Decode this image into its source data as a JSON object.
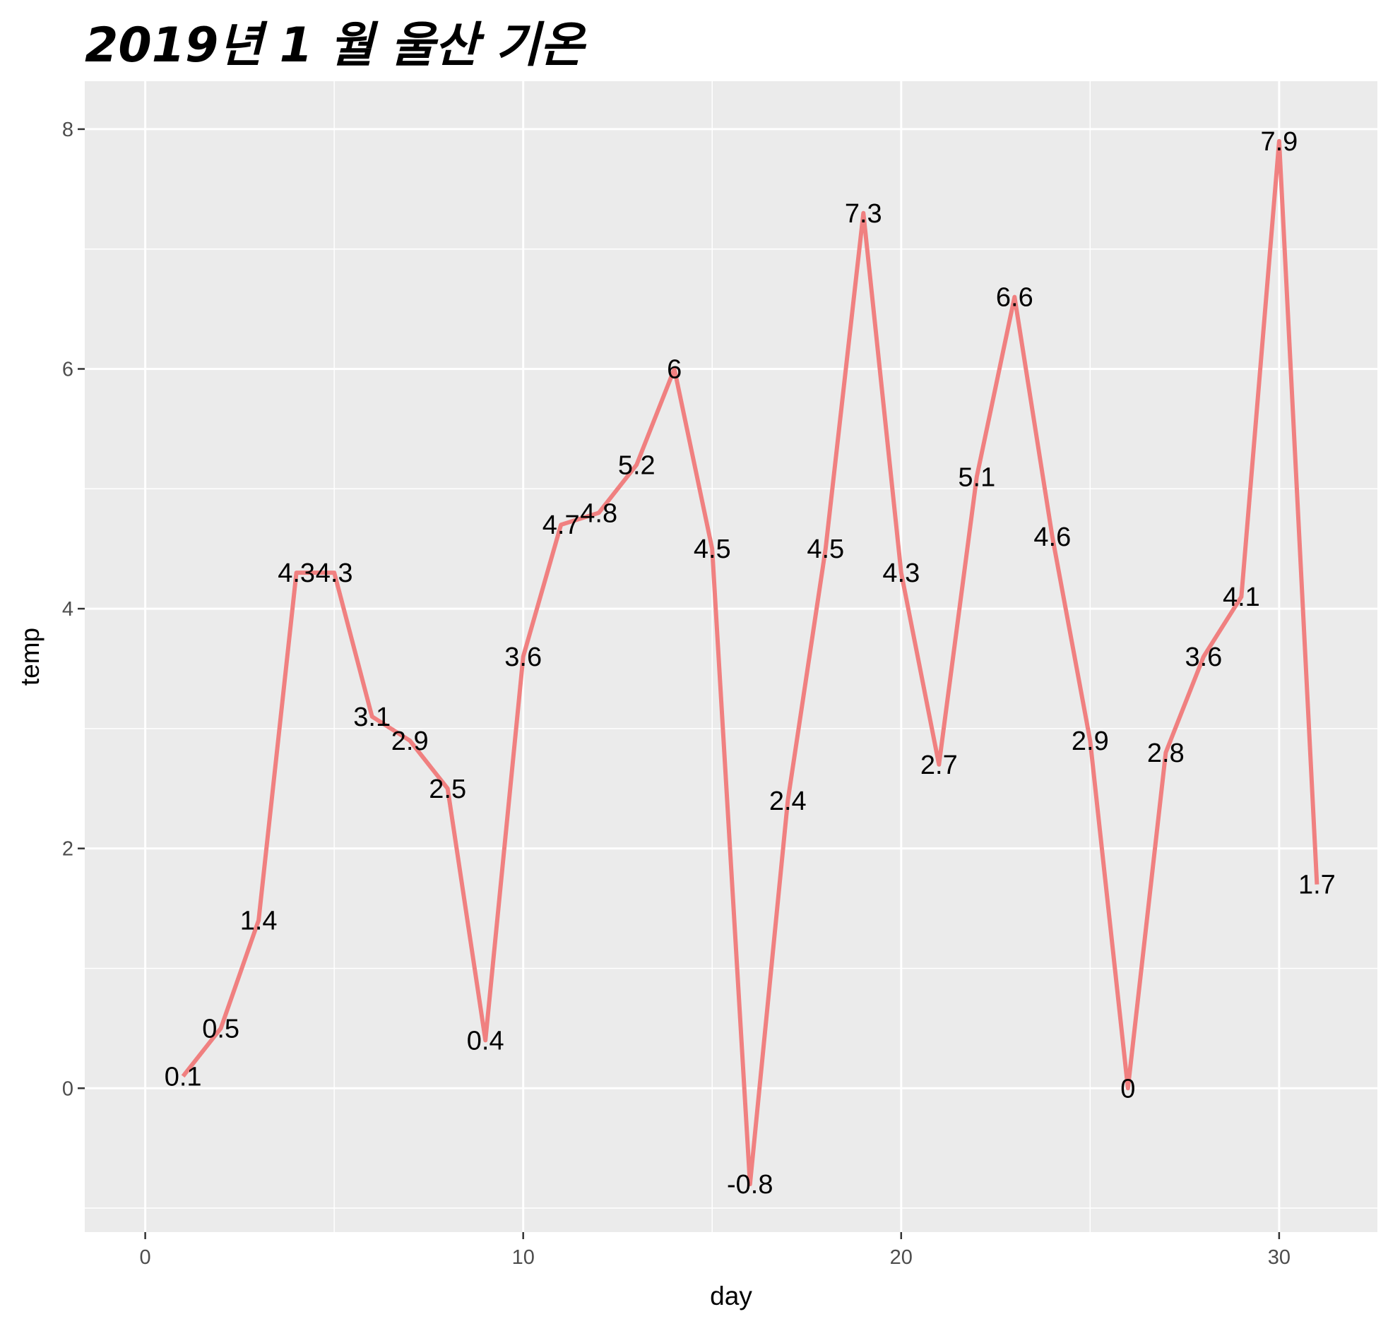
{
  "chart_data": {
    "type": "line",
    "title": "2019년 1 월 울산 기온",
    "xlabel": "day",
    "ylabel": "temp",
    "xlim": [
      -1.6,
      32.6
    ],
    "ylim": [
      -1.2,
      8.4
    ],
    "x_ticks": [
      0,
      10,
      20,
      30
    ],
    "y_ticks": [
      0,
      2,
      4,
      6,
      8
    ],
    "grid": true,
    "legend": "none",
    "line_color": "#F08080",
    "panel_background": "#EBEBEB",
    "grid_color": "#FFFFFF",
    "x": [
      1,
      2,
      3,
      4,
      5,
      6,
      7,
      8,
      9,
      10,
      11,
      12,
      13,
      14,
      15,
      16,
      17,
      18,
      19,
      20,
      21,
      22,
      23,
      24,
      25,
      26,
      27,
      28,
      29,
      30,
      31
    ],
    "values": [
      0.1,
      0.5,
      1.4,
      4.3,
      4.3,
      3.1,
      2.9,
      2.5,
      0.4,
      3.6,
      4.7,
      4.8,
      5.2,
      6,
      4.5,
      -0.8,
      2.4,
      4.5,
      7.3,
      4.3,
      2.7,
      5.1,
      6.6,
      4.6,
      2.9,
      0,
      2.8,
      3.6,
      4.1,
      7.9,
      1.7
    ],
    "labels": [
      "0.1",
      "0.5",
      "1.4",
      "4.3",
      "4.3",
      "3.1",
      "2.9",
      "2.5",
      "0.4",
      "3.6",
      "4.7",
      "4.8",
      "5.2",
      "6",
      "4.5",
      "-0.8",
      "2.4",
      "4.5",
      "7.3",
      "4.3",
      "2.7",
      "5.1",
      "6.6",
      "4.6",
      "2.9",
      "0",
      "2.8",
      "3.6",
      "4.1",
      "7.9",
      "1.7"
    ]
  }
}
